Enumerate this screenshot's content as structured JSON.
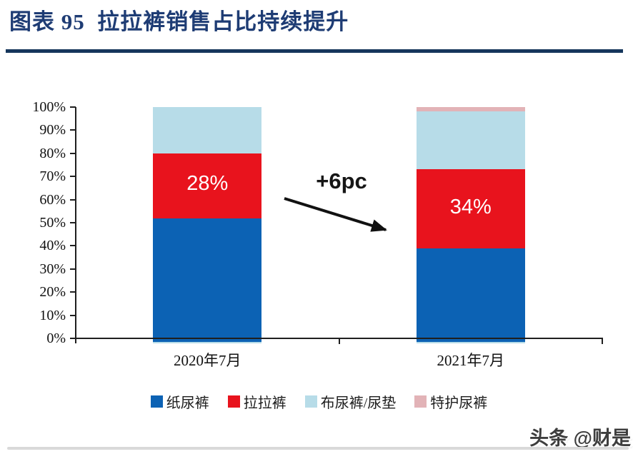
{
  "figure": {
    "title": "图表 95  拉拉裤销售占比持续提升",
    "watermark": "头条 @财是"
  },
  "colors": {
    "title_navy": "#1e3c74",
    "rule_navy": "#16365c",
    "axis_black": "#1f1f1f",
    "bar_label_white": "#ffffff"
  },
  "chart_data": {
    "type": "bar",
    "stacked": true,
    "title": "拉拉裤销售占比持续提升",
    "categories": [
      "2020年7月",
      "2021年7月"
    ],
    "series": [
      {
        "name": "纸尿裤",
        "color": "#0c62b4",
        "values": [
          52,
          39
        ]
      },
      {
        "name": "拉拉裤",
        "color": "#e8131d",
        "values": [
          28,
          34
        ],
        "labels": [
          "28%",
          "34%"
        ]
      },
      {
        "name": "布尿裤/尿垫",
        "color": "#b7dce8",
        "values": [
          20,
          25
        ]
      },
      {
        "name": "特护尿裤",
        "color": "#e2b3b7",
        "values": [
          0,
          2
        ]
      }
    ],
    "xlabel": "",
    "ylabel": "",
    "ylim": [
      0,
      100
    ],
    "yticks": [
      "0%",
      "10%",
      "20%",
      "30%",
      "40%",
      "50%",
      "60%",
      "70%",
      "80%",
      "90%",
      "100%"
    ],
    "grid": false,
    "legend_position": "bottom",
    "annotation": {
      "text": "+6pc",
      "meaning": "拉拉裤占比 28% → 34%"
    }
  }
}
